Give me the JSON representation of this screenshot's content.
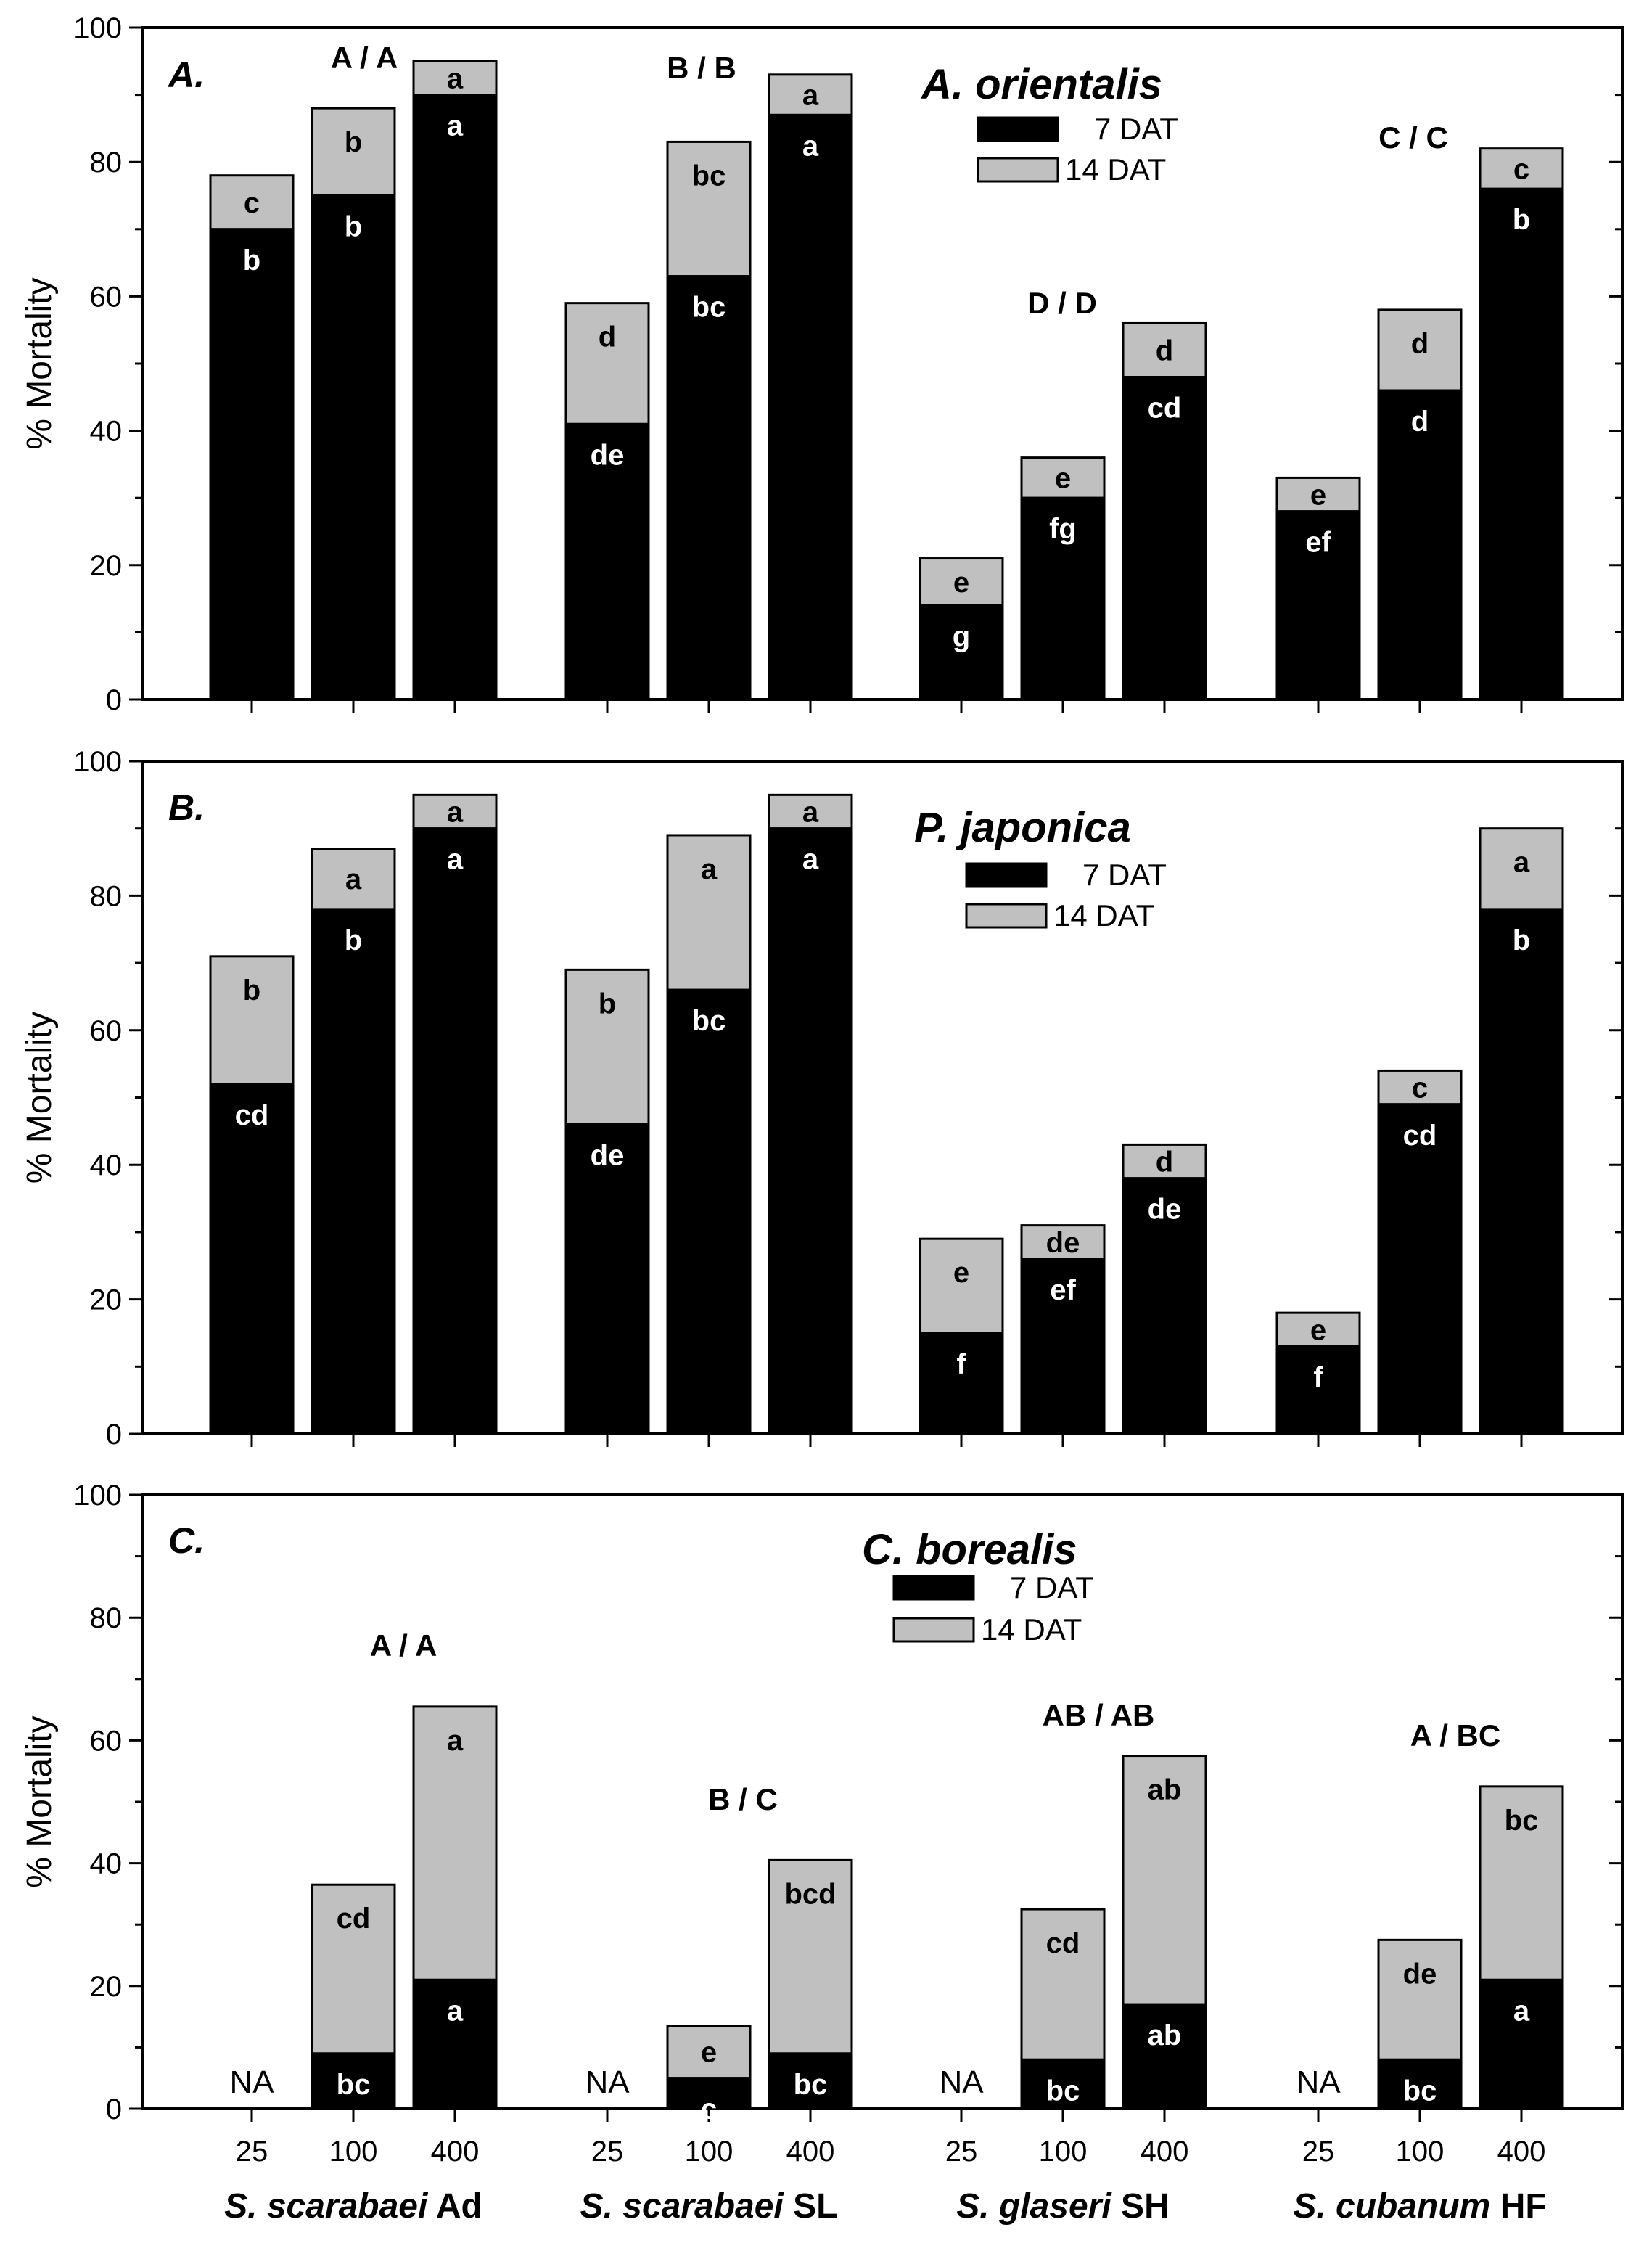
{
  "figure": {
    "x_levels": [
      "25",
      "100",
      "400"
    ],
    "x_groups": [
      {
        "species": "S. scarabaei",
        "strain": "Ad"
      },
      {
        "species": "S. scarabaei",
        "strain": "SL"
      },
      {
        "species": "S. glaseri",
        "strain": "SH"
      },
      {
        "species": "S. cubanum",
        "strain": "HF"
      }
    ]
  },
  "chart_data": [
    {
      "type": "bar",
      "stacked": true,
      "panel_label": "A.",
      "title": "A. orientalis",
      "ylabel": "% Mortality",
      "ylim": [
        0,
        100
      ],
      "yticks": [
        0,
        20,
        40,
        60,
        80,
        100
      ],
      "legend": [
        "7 DAT",
        "14 DAT"
      ],
      "colors": {
        "dat7": "#000000",
        "dat14": "#c0c0c0"
      },
      "group_letters": [
        "A / A",
        "B / B",
        "D / D",
        "C / C"
      ],
      "groups": [
        {
          "bars": [
            {
              "dat7": 70,
              "total": 78,
              "label7": "b",
              "label14": "c"
            },
            {
              "dat7": 75,
              "total": 88,
              "label7": "b",
              "label14": "b"
            },
            {
              "dat7": 90,
              "total": 95,
              "label7": "a",
              "label14": "a"
            }
          ]
        },
        {
          "bars": [
            {
              "dat7": 41,
              "total": 59,
              "label7": "de",
              "label14": "d"
            },
            {
              "dat7": 63,
              "total": 83,
              "label7": "bc",
              "label14": "bc"
            },
            {
              "dat7": 87,
              "total": 93,
              "label7": "a",
              "label14": "a"
            }
          ]
        },
        {
          "bars": [
            {
              "dat7": 14,
              "total": 21,
              "label7": "g",
              "label14": "e"
            },
            {
              "dat7": 30,
              "total": 36,
              "label7": "fg",
              "label14": "e"
            },
            {
              "dat7": 48,
              "total": 56,
              "label7": "cd",
              "label14": "d"
            }
          ]
        },
        {
          "bars": [
            {
              "dat7": 28,
              "total": 33,
              "label7": "ef",
              "label14": "e"
            },
            {
              "dat7": 46,
              "total": 58,
              "label7": "d",
              "label14": "d"
            },
            {
              "dat7": 76,
              "total": 82,
              "label7": "b",
              "label14": "c"
            }
          ]
        }
      ]
    },
    {
      "type": "bar",
      "stacked": true,
      "panel_label": "B.",
      "title": "P. japonica",
      "ylabel": "% Mortality",
      "ylim": [
        0,
        100
      ],
      "yticks": [
        0,
        20,
        40,
        60,
        80,
        100
      ],
      "legend": [
        "7 DAT",
        "14 DAT"
      ],
      "colors": {
        "dat7": "#000000",
        "dat14": "#c0c0c0"
      },
      "group_letters": [],
      "groups": [
        {
          "bars": [
            {
              "dat7": 52,
              "total": 71,
              "label7": "cd",
              "label14": "b"
            },
            {
              "dat7": 78,
              "total": 87,
              "label7": "b",
              "label14": "a"
            },
            {
              "dat7": 90,
              "total": 95,
              "label7": "a",
              "label14": "a"
            }
          ]
        },
        {
          "bars": [
            {
              "dat7": 46,
              "total": 69,
              "label7": "de",
              "label14": "b"
            },
            {
              "dat7": 66,
              "total": 89,
              "label7": "bc",
              "label14": "a"
            },
            {
              "dat7": 90,
              "total": 95,
              "label7": "a",
              "label14": "a"
            }
          ]
        },
        {
          "bars": [
            {
              "dat7": 15,
              "total": 29,
              "label7": "f",
              "label14": "e"
            },
            {
              "dat7": 26,
              "total": 31,
              "label7": "ef",
              "label14": "de"
            },
            {
              "dat7": 38,
              "total": 43,
              "label7": "de",
              "label14": "d"
            }
          ]
        },
        {
          "bars": [
            {
              "dat7": 13,
              "total": 18,
              "label7": "f",
              "label14": "e"
            },
            {
              "dat7": 49,
              "total": 54,
              "label7": "cd",
              "label14": "c"
            },
            {
              "dat7": 78,
              "total": 90,
              "label7": "b",
              "label14": "a"
            }
          ]
        }
      ]
    },
    {
      "type": "bar",
      "stacked": true,
      "panel_label": "C.",
      "title": "C. borealis",
      "ylabel": "% Mortality",
      "ylim": [
        0,
        100
      ],
      "yticks": [
        0,
        20,
        40,
        60,
        80,
        100
      ],
      "legend": [
        "7 DAT",
        "14 DAT"
      ],
      "colors": {
        "dat7": "#000000",
        "dat14": "#c0c0c0"
      },
      "group_letters": [
        "A / A",
        "B / C",
        "AB  / AB",
        "A / BC"
      ],
      "na_text": "NA",
      "groups": [
        {
          "bars": [
            {
              "na": true
            },
            {
              "dat7": 9,
              "total": 36.5,
              "label7": "bc",
              "label14": "cd"
            },
            {
              "dat7": 21,
              "total": 65.5,
              "label7": "a",
              "label14": "a"
            }
          ]
        },
        {
          "bars": [
            {
              "na": true
            },
            {
              "dat7": 5,
              "total": 13.5,
              "label7": "c",
              "label14": "e"
            },
            {
              "dat7": 9,
              "total": 40.5,
              "label7": "bc",
              "label14": "bcd"
            }
          ]
        },
        {
          "bars": [
            {
              "na": true
            },
            {
              "dat7": 8,
              "total": 32.5,
              "label7": "bc",
              "label14": "cd"
            },
            {
              "dat7": 17,
              "total": 57.5,
              "label7": "ab",
              "label14": "ab"
            }
          ]
        },
        {
          "bars": [
            {
              "na": true
            },
            {
              "dat7": 8,
              "total": 27.5,
              "label7": "bc",
              "label14": "de"
            },
            {
              "dat7": 21,
              "total": 52.5,
              "label7": "a",
              "label14": "bc"
            }
          ]
        }
      ]
    }
  ]
}
